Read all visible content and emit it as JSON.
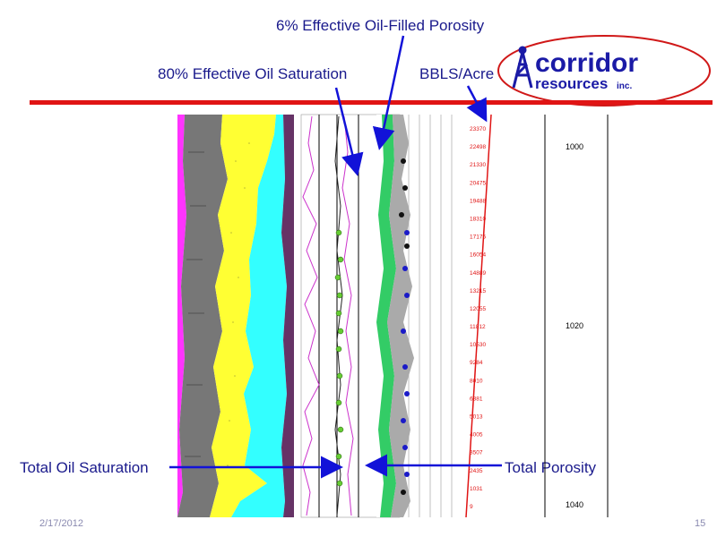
{
  "labels": {
    "porosity_6": "6% Effective Oil-Filled Porosity",
    "saturation_80": "80% Effective Oil Saturation",
    "bbls_acre": "BBLS/Acre",
    "total_oil_saturation": "Total Oil Saturation",
    "total_porosity": "Total Porosity"
  },
  "logo": {
    "word1": "corridor",
    "word2": "resources",
    "suffix": "inc.",
    "brand_color": "#1a1aa6",
    "ring_color": "#d01818"
  },
  "log": {
    "bbls_ticks": [
      "23370",
      "22498",
      "21330",
      "20475",
      "19488",
      "18310",
      "17175",
      "16054",
      "14889",
      "13215",
      "12055",
      "11812",
      "10530",
      "9284",
      "8010",
      "6381",
      "5013",
      "4005",
      "3507",
      "2435",
      "1031",
      "9"
    ],
    "depths": [
      "1000",
      "1020",
      "1040"
    ]
  },
  "footer": {
    "date": "2/17/2012",
    "page": "15"
  },
  "colors": {
    "accent_red": "#e01414",
    "arrow_blue": "#1212d8",
    "label_navy": "#1a1a8c"
  }
}
